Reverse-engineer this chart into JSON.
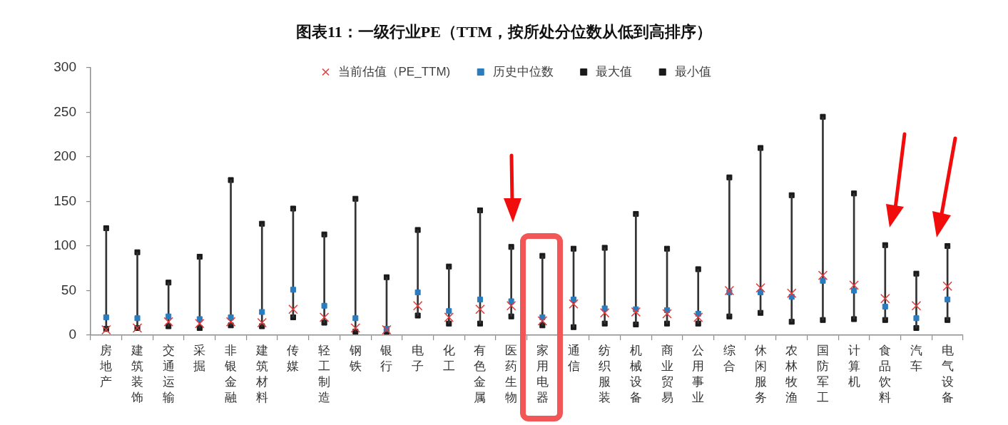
{
  "chart_data": {
    "type": "scatter",
    "title": "图表11：一级行业PE（TTM，按所处分位数从低到高排序）",
    "categories": [
      "房地产",
      "建筑装饰",
      "交通运输",
      "采掘",
      "非银金融",
      "建筑材料",
      "传媒",
      "轻工制造",
      "钢铁",
      "银行",
      "电子",
      "化工",
      "有色金属",
      "医药生物",
      "家用电器",
      "通信",
      "纺织服装",
      "机械设备",
      "商业贸易",
      "公用事业",
      "综合",
      "休闲服务",
      "农林牧渔",
      "国防军工",
      "计算机",
      "食品饮料",
      "汽车",
      "电气设备"
    ],
    "series": [
      {
        "name": "当前估值（PE_TTM)",
        "color": "#e53c3c",
        "marker": "cross",
        "values": [
          6,
          8,
          15,
          13,
          15,
          14,
          29,
          20,
          8,
          6,
          33,
          20,
          29,
          33,
          16,
          35,
          25,
          26,
          24,
          20,
          50,
          53,
          47,
          67,
          56,
          41,
          33,
          55
        ]
      },
      {
        "name": "历史中位数",
        "color": "#2b7bbf",
        "marker": "square",
        "values": [
          20,
          19,
          21,
          18,
          20,
          26,
          51,
          33,
          19,
          7,
          48,
          27,
          40,
          38,
          20,
          40,
          30,
          29,
          28,
          24,
          48,
          48,
          43,
          61,
          50,
          32,
          19,
          40
        ]
      },
      {
        "type": "bar",
        "color": "#333333",
        "base": [
          7,
          8,
          10,
          8,
          11,
          10,
          20,
          14,
          4,
          4,
          22,
          13,
          13,
          21,
          11,
          9,
          13,
          12,
          13,
          13,
          21,
          25,
          15,
          17,
          18,
          17,
          8,
          17
        ],
        "values": [
          113,
          85,
          49,
          80,
          163,
          115,
          122,
          99,
          149,
          61,
          96,
          64,
          127,
          78,
          78,
          88,
          85,
          124,
          84,
          61,
          156,
          185,
          142,
          228,
          141,
          84,
          61,
          83
        ]
      },
      {
        "name": "最大值",
        "color": "#1a1a1a",
        "marker": "square",
        "values": [
          120,
          93,
          59,
          88,
          174,
          125,
          142,
          113,
          153,
          65,
          118,
          77,
          140,
          99,
          89,
          97,
          98,
          136,
          97,
          74,
          177,
          210,
          157,
          245,
          159,
          101,
          69,
          100
        ]
      },
      {
        "name": "最小值",
        "color": "#1a1a1a",
        "marker": "square",
        "values": [
          7,
          8,
          10,
          8,
          11,
          10,
          20,
          14,
          4,
          4,
          22,
          13,
          13,
          21,
          11,
          9,
          13,
          12,
          13,
          13,
          21,
          25,
          15,
          17,
          18,
          17,
          8,
          17
        ]
      }
    ],
    "ylim": [
      0,
      300
    ],
    "yticks": [
      0,
      50,
      100,
      150,
      200,
      250,
      300
    ],
    "grid": false,
    "legend": "top"
  }
}
